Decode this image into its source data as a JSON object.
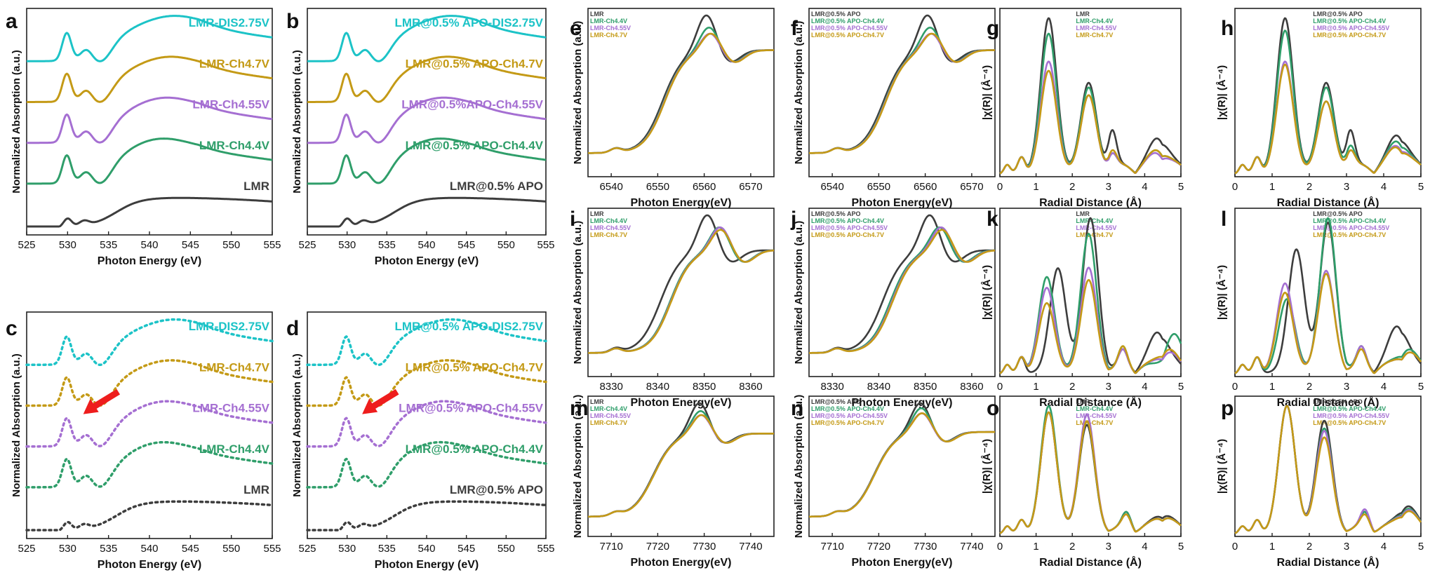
{
  "colors": {
    "cyan": "#1cc3c7",
    "gold": "#c49a16",
    "purple": "#a56fd2",
    "green": "#2f9e6a",
    "black": "#3d3d3d",
    "arrow": "#ee1d1d"
  },
  "chart_data": [
    {
      "id": "a",
      "letter": "a",
      "type": "line",
      "style": "solid",
      "family": "OK",
      "xlabel": "Photon Energy (eV)",
      "ylabel": "Normalized Absorption (a.u.)",
      "xlim": [
        525,
        555
      ],
      "xticks": [
        "525",
        "530",
        "535",
        "540",
        "545",
        "550",
        "555"
      ],
      "offset": 1.0,
      "series": [
        {
          "name": "LMR-DIS2.75V",
          "color": "cyan",
          "order": 4
        },
        {
          "name": "LMR-Ch4.7V",
          "color": "gold",
          "order": 3
        },
        {
          "name": "LMR-Ch4.55V",
          "color": "purple",
          "order": 2
        },
        {
          "name": "LMR-Ch4.4V",
          "color": "green",
          "order": 1
        },
        {
          "name": "LMR",
          "color": "black",
          "order": 0
        }
      ]
    },
    {
      "id": "b",
      "letter": "b",
      "type": "line",
      "style": "solid",
      "family": "OK",
      "xlabel": "Photon Energy (eV)",
      "ylabel": "Normalized Absorption (a.u.)",
      "xlim": [
        525,
        555
      ],
      "xticks": [
        "525",
        "530",
        "535",
        "540",
        "545",
        "550",
        "555"
      ],
      "offset": 1.0,
      "series": [
        {
          "name": "LMR@0.5% APO-DIS2.75V",
          "color": "cyan",
          "order": 4
        },
        {
          "name": "LMR@0.5% APO-Ch4.7V",
          "color": "gold",
          "order": 3
        },
        {
          "name": "LMR@0.5%APO-Ch4.55V",
          "color": "purple",
          "order": 2
        },
        {
          "name": "LMR@0.5% APO-Ch4.4V",
          "color": "green",
          "order": 1
        },
        {
          "name": "LMR@0.5% APO",
          "color": "black",
          "order": 0
        }
      ]
    },
    {
      "id": "c",
      "letter": "c",
      "type": "line",
      "style": "dotted",
      "family": "OK",
      "xlabel": "Photon Energy (eV)",
      "ylabel": "Normalized Absorption (a.u.)",
      "xlim": [
        525,
        555
      ],
      "xticks": [
        "525",
        "530",
        "535",
        "540",
        "545",
        "550",
        "555"
      ],
      "offset": 1.0,
      "arrow": true,
      "series": [
        {
          "name": "LMR-DIS2.75V",
          "color": "cyan",
          "order": 4
        },
        {
          "name": "LMR-Ch4.7V",
          "color": "gold",
          "order": 3
        },
        {
          "name": "LMR-Ch4.55V",
          "color": "purple",
          "order": 2
        },
        {
          "name": "LMR-Ch4.4V",
          "color": "green",
          "order": 1
        },
        {
          "name": "LMR",
          "color": "black",
          "order": 0
        }
      ]
    },
    {
      "id": "d",
      "letter": "d",
      "type": "line",
      "style": "dotted",
      "family": "OK",
      "xlabel": "Photon Energy (eV)",
      "ylabel": "Normalized Absorption (a.u.)",
      "xlim": [
        525,
        555
      ],
      "xticks": [
        "525",
        "530",
        "535",
        "540",
        "545",
        "550",
        "555"
      ],
      "offset": 1.0,
      "arrow": true,
      "series": [
        {
          "name": "LMR@0.5% APO-DIS2.75V",
          "color": "cyan",
          "order": 4
        },
        {
          "name": "LMR@0.5% APO-Ch4.7V",
          "color": "gold",
          "order": 3
        },
        {
          "name": "LMR@0.5% APO-Ch4.55V",
          "color": "purple",
          "order": 2
        },
        {
          "name": "LMR@0.5% APO-Ch4.4V",
          "color": "green",
          "order": 1
        },
        {
          "name": "LMR@0.5% APO",
          "color": "black",
          "order": 0
        }
      ]
    },
    {
      "id": "e",
      "letter": "e",
      "type": "line",
      "family": "XANES",
      "edge": 6551,
      "white": 6560.5,
      "shiftScale": 0.5,
      "xlabel": "Photon Energy(eV)",
      "ylabel": "Normalized Absorption (a.u.)",
      "xlim": [
        6535,
        6575
      ],
      "xticks": [
        "6540",
        "6550",
        "6560",
        "6570"
      ],
      "series": [
        {
          "name": "LMR",
          "color": "black",
          "shift": 0.0,
          "amp": 1.1
        },
        {
          "name": "LMR-Ch4.4V",
          "color": "green",
          "shift": 0.6,
          "amp": 1.0
        },
        {
          "name": "LMR-Ch4.55V",
          "color": "purple",
          "shift": 0.8,
          "amp": 0.95
        },
        {
          "name": "LMR-Ch4.7V",
          "color": "gold",
          "shift": 1.0,
          "amp": 0.95
        }
      ]
    },
    {
      "id": "f",
      "letter": "f",
      "type": "line",
      "family": "XANES",
      "edge": 6551,
      "white": 6560.5,
      "shiftScale": 0.5,
      "xlabel": "Photon Energy(eV)",
      "ylabel": "Normalized Absorption (a.u.)",
      "xlim": [
        6535,
        6575
      ],
      "xticks": [
        "6540",
        "6550",
        "6560",
        "6570"
      ],
      "series": [
        {
          "name": "LMR@0.5% APO",
          "color": "black",
          "shift": 0.0,
          "amp": 1.1
        },
        {
          "name": "LMR@0.5% APO-Ch4.4V",
          "color": "green",
          "shift": 0.6,
          "amp": 1.0
        },
        {
          "name": "LMR@0.5% APO-Ch4.55V",
          "color": "purple",
          "shift": 0.8,
          "amp": 0.95
        },
        {
          "name": "LMR@0.5% APO-Ch4.7V",
          "color": "gold",
          "shift": 1.0,
          "amp": 0.95
        }
      ]
    },
    {
      "id": "g",
      "letter": "g",
      "type": "line",
      "family": "EXAFS",
      "xlabel": "Radial Distance (Å)",
      "ylabel": "|χ(R)| (Å⁻⁴)",
      "xlim": [
        0,
        5
      ],
      "xticks": [
        "0",
        "1",
        "2",
        "3",
        "4",
        "5"
      ],
      "series": [
        {
          "name": "LMR",
          "color": "black",
          "p1": [
            1.35,
            1.0
          ],
          "p2": [
            2.45,
            0.58
          ],
          "p3": [
            3.1,
            0.25
          ],
          "p4": [
            4.4,
            0.2
          ]
        },
        {
          "name": "LMR-Ch4.4V",
          "color": "green",
          "p1": [
            1.35,
            0.9
          ],
          "p2": [
            2.45,
            0.55
          ],
          "p3": [
            3.1,
            0.1
          ],
          "p4": [
            4.4,
            0.12
          ]
        },
        {
          "name": "LMR-Ch4.55V",
          "color": "purple",
          "p1": [
            1.35,
            0.72
          ],
          "p2": [
            2.45,
            0.5
          ],
          "p3": [
            3.1,
            0.1
          ],
          "p4": [
            4.4,
            0.1
          ]
        },
        {
          "name": "LMR-Ch4.7V",
          "color": "gold",
          "p1": [
            1.35,
            0.66
          ],
          "p2": [
            2.45,
            0.5
          ],
          "p3": [
            3.1,
            0.12
          ],
          "p4": [
            4.4,
            0.12
          ]
        }
      ]
    },
    {
      "id": "h",
      "letter": "h",
      "type": "line",
      "family": "EXAFS",
      "xlabel": "Radial Distance (Å)",
      "ylabel": "|χ(R)| (Å⁻⁴)",
      "xlim": [
        0,
        5
      ],
      "xticks": [
        "0",
        "1",
        "2",
        "3",
        "4",
        "5"
      ],
      "series": [
        {
          "name": "LMR@0.5% APO",
          "color": "black",
          "p1": [
            1.35,
            1.0
          ],
          "p2": [
            2.45,
            0.58
          ],
          "p3": [
            3.1,
            0.25
          ],
          "p4": [
            4.4,
            0.22
          ]
        },
        {
          "name": "LMR@0.5% APO-Ch4.4V",
          "color": "green",
          "p1": [
            1.35,
            0.92
          ],
          "p2": [
            2.45,
            0.55
          ],
          "p3": [
            3.1,
            0.15
          ],
          "p4": [
            4.4,
            0.18
          ]
        },
        {
          "name": "LMR@0.5% APO-Ch4.55V",
          "color": "purple",
          "p1": [
            1.35,
            0.72
          ],
          "p2": [
            2.45,
            0.46
          ],
          "p3": [
            3.1,
            0.12
          ],
          "p4": [
            4.4,
            0.15
          ]
        },
        {
          "name": "LMR@0.5% APO-Ch4.7V",
          "color": "gold",
          "p1": [
            1.35,
            0.7
          ],
          "p2": [
            2.45,
            0.46
          ],
          "p3": [
            3.1,
            0.12
          ],
          "p4": [
            4.4,
            0.14
          ]
        }
      ]
    },
    {
      "id": "i",
      "letter": "i",
      "type": "line",
      "family": "XANES",
      "edge": 8342,
      "white": 8352.5,
      "shiftScale": 0.8,
      "xlabel": "Photon Energy(eV)",
      "ylabel": "Normalized Absorption (a.u.)",
      "xlim": [
        8325,
        8365
      ],
      "xticks": [
        "8330",
        "8340",
        "8350",
        "8360"
      ],
      "series": [
        {
          "name": "LMR",
          "color": "black",
          "shift": -1.8,
          "amp": 1.1
        },
        {
          "name": "LMR-Ch4.4V",
          "color": "green",
          "shift": 0.8,
          "amp": 1.0
        },
        {
          "name": "LMR-Ch4.55V",
          "color": "purple",
          "shift": 1.0,
          "amp": 1.0
        },
        {
          "name": "LMR-Ch4.7V",
          "color": "gold",
          "shift": 1.1,
          "amp": 0.98
        }
      ]
    },
    {
      "id": "j",
      "letter": "j",
      "type": "line",
      "family": "XANES",
      "edge": 8342,
      "white": 8352.5,
      "shiftScale": 0.8,
      "xlabel": "Photon Energy(eV)",
      "ylabel": "Normalized Absorption (a.u.)",
      "xlim": [
        8325,
        8365
      ],
      "xticks": [
        "8330",
        "8340",
        "8350",
        "8360"
      ],
      "series": [
        {
          "name": "LMR@0.5% APO",
          "color": "black",
          "shift": -1.5,
          "amp": 1.1
        },
        {
          "name": "LMR@0.5% APO-Ch4.4V",
          "color": "green",
          "shift": 0.6,
          "amp": 1.0
        },
        {
          "name": "LMR@0.5% APO-Ch4.55V",
          "color": "purple",
          "shift": 1.0,
          "amp": 1.0
        },
        {
          "name": "LMR@0.5% APO-Ch4.7V",
          "color": "gold",
          "shift": 1.2,
          "amp": 0.98
        }
      ]
    },
    {
      "id": "k",
      "letter": "k",
      "type": "line",
      "family": "EXAFS",
      "xlabel": "Radial Distance (Å)",
      "ylabel": "|χ(R)| (Å⁻⁴)",
      "xlim": [
        0,
        5
      ],
      "xticks": [
        "0",
        "1",
        "2",
        "3",
        "4",
        "5"
      ],
      "series": [
        {
          "name": "LMR",
          "color": "black",
          "p1": [
            1.6,
            0.68
          ],
          "p2": [
            2.5,
            1.0
          ],
          "p3": [
            3.4,
            0.1
          ],
          "p4": [
            4.4,
            0.24
          ]
        },
        {
          "name": "LMR-Ch4.4V",
          "color": "green",
          "p1": [
            1.3,
            0.62
          ],
          "p2": [
            2.45,
            0.9
          ],
          "p3": [
            3.4,
            0.12
          ],
          "p4": [
            4.8,
            0.2
          ]
        },
        {
          "name": "LMR-Ch4.55V",
          "color": "purple",
          "p1": [
            1.3,
            0.55
          ],
          "p2": [
            2.45,
            0.68
          ],
          "p3": [
            3.4,
            0.1
          ],
          "p4": [
            4.6,
            0.1
          ]
        },
        {
          "name": "LMR-Ch4.7V",
          "color": "gold",
          "p1": [
            1.3,
            0.45
          ],
          "p2": [
            2.45,
            0.6
          ],
          "p3": [
            3.4,
            0.12
          ],
          "p4": [
            4.6,
            0.12
          ]
        }
      ]
    },
    {
      "id": "l",
      "letter": "l",
      "type": "line",
      "family": "EXAFS",
      "xlabel": "Radial Distance (Å)",
      "ylabel": "|χ(R)| (Å⁻⁴)",
      "xlim": [
        0,
        5
      ],
      "xticks": [
        "0",
        "1",
        "2",
        "3",
        "4",
        "5"
      ],
      "series": [
        {
          "name": "LMR@0.5% APO",
          "color": "black",
          "p1": [
            1.65,
            0.8
          ],
          "p2": [
            2.5,
            0.97
          ],
          "p3": [
            3.4,
            0.12
          ],
          "p4": [
            4.4,
            0.28
          ]
        },
        {
          "name": "LMR@0.5% APO-Ch4.4V",
          "color": "green",
          "p1": [
            1.4,
            0.48
          ],
          "p2": [
            2.5,
            1.0
          ],
          "p3": [
            3.4,
            0.12
          ],
          "p4": [
            4.6,
            0.12
          ]
        },
        {
          "name": "LMR@0.5% APO-Ch4.55V",
          "color": "purple",
          "p1": [
            1.35,
            0.58
          ],
          "p2": [
            2.45,
            0.66
          ],
          "p3": [
            3.4,
            0.12
          ],
          "p4": [
            4.6,
            0.1
          ]
        },
        {
          "name": "LMR@0.5% APO-Ch4.7V",
          "color": "gold",
          "p1": [
            1.35,
            0.52
          ],
          "p2": [
            2.45,
            0.64
          ],
          "p3": [
            3.4,
            0.1
          ],
          "p4": [
            4.6,
            0.1
          ]
        }
      ]
    },
    {
      "id": "m",
      "letter": "m",
      "type": "line",
      "family": "XANES",
      "edge": 7719,
      "white": 7729,
      "shiftScale": 0.3,
      "xlabel": "Photon Energy(eV)",
      "ylabel": "Normalized Absorption (a.u.)",
      "xlim": [
        7705,
        7745
      ],
      "xticks": [
        "7710",
        "7720",
        "7730",
        "7740"
      ],
      "series": [
        {
          "name": "LMR",
          "color": "black",
          "shift": 0.0,
          "amp": 1.12
        },
        {
          "name": "LMR-Ch4.4V",
          "color": "green",
          "shift": 0.3,
          "amp": 1.04
        },
        {
          "name": "LMR-Ch4.55V",
          "color": "purple",
          "shift": 0.4,
          "amp": 1.0
        },
        {
          "name": "LMR-Ch4.7V",
          "color": "gold",
          "shift": 0.5,
          "amp": 1.0
        }
      ]
    },
    {
      "id": "n",
      "letter": "n",
      "type": "line",
      "family": "XANES",
      "edge": 7719,
      "white": 7729,
      "shiftScale": 0.3,
      "xlabel": "Photon Energy(eV)",
      "ylabel": "Normalized Absorption (a.u.)",
      "xlim": [
        7705,
        7745
      ],
      "xticks": [
        "7710",
        "7720",
        "7730",
        "7740"
      ],
      "series": [
        {
          "name": "LMR@0.5% APO",
          "color": "black",
          "shift": 0.0,
          "amp": 1.1
        },
        {
          "name": "LMR@0.5% APO-Ch4.4V",
          "color": "green",
          "shift": 0.2,
          "amp": 1.05
        },
        {
          "name": "LMR@0.5% APO-Ch4.55V",
          "color": "purple",
          "shift": 0.3,
          "amp": 1.0
        },
        {
          "name": "LMR@0.5% APO-Ch4.7V",
          "color": "gold",
          "shift": 0.4,
          "amp": 1.0
        }
      ]
    },
    {
      "id": "o",
      "letter": "o",
      "type": "line",
      "family": "EXAFS",
      "xlabel": "Radial Distance (Å)",
      "ylabel": "|χ(R)| (Å⁻⁴)",
      "xlim": [
        0,
        5
      ],
      "xticks": [
        "0",
        "1",
        "2",
        "3",
        "4",
        "5"
      ],
      "series": [
        {
          "name": "LMR",
          "color": "black",
          "p1": [
            1.35,
            0.95
          ],
          "p2": [
            2.4,
            0.85
          ],
          "p3": [
            3.5,
            0.12
          ],
          "p4": [
            4.5,
            0.12
          ]
        },
        {
          "name": "LMR-Ch4.4V",
          "color": "green",
          "p1": [
            1.35,
            1.0
          ],
          "p2": [
            2.4,
            0.88
          ],
          "p3": [
            3.5,
            0.12
          ],
          "p4": [
            4.5,
            0.1
          ]
        },
        {
          "name": "LMR-Ch4.55V",
          "color": "purple",
          "p1": [
            1.35,
            0.95
          ],
          "p2": [
            2.4,
            0.93
          ],
          "p3": [
            3.5,
            0.1
          ],
          "p4": [
            4.5,
            0.1
          ]
        },
        {
          "name": "LMR-Ch4.7V",
          "color": "gold",
          "p1": [
            1.35,
            0.95
          ],
          "p2": [
            2.4,
            0.88
          ],
          "p3": [
            3.5,
            0.1
          ],
          "p4": [
            4.5,
            0.1
          ]
        }
      ]
    },
    {
      "id": "p",
      "letter": "p",
      "type": "line",
      "family": "EXAFS",
      "xlabel": "Radial Distance (Å)",
      "ylabel": "|χ(R)| (Å⁻⁴)",
      "xlim": [
        0,
        5
      ],
      "xticks": [
        "0",
        "1",
        "2",
        "3",
        "4",
        "5"
      ],
      "series": [
        {
          "name": "LMR@0.5% APO",
          "color": "black",
          "p1": [
            1.4,
            1.0
          ],
          "p2": [
            2.4,
            0.88
          ],
          "p3": [
            3.5,
            0.12
          ],
          "p4": [
            4.6,
            0.18
          ]
        },
        {
          "name": "LMR@0.5% APO-Ch4.4V",
          "color": "green",
          "p1": [
            1.4,
            1.0
          ],
          "p2": [
            2.4,
            0.82
          ],
          "p3": [
            3.5,
            0.12
          ],
          "p4": [
            4.6,
            0.16
          ]
        },
        {
          "name": "LMR@0.5% APO-Ch4.55V",
          "color": "purple",
          "p1": [
            1.4,
            1.0
          ],
          "p2": [
            2.4,
            0.8
          ],
          "p3": [
            3.5,
            0.14
          ],
          "p4": [
            4.6,
            0.15
          ]
        },
        {
          "name": "LMR@0.5% APO-Ch4.7V",
          "color": "gold",
          "p1": [
            1.4,
            1.0
          ],
          "p2": [
            2.4,
            0.75
          ],
          "p3": [
            3.5,
            0.1
          ],
          "p4": [
            4.6,
            0.14
          ]
        }
      ]
    }
  ]
}
